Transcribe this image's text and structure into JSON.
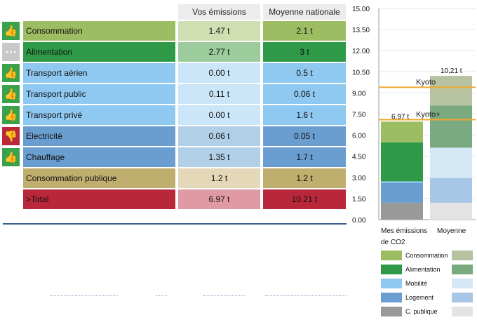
{
  "table": {
    "headers": {
      "yours": "Vos émissions",
      "national": "Moyenne nationale"
    },
    "rows": [
      {
        "icon": "thumbs-up-icon",
        "icon_glyph": "👍",
        "icon_bg": "#3aa24a",
        "label": "Consommation",
        "yours": "1.47 t",
        "national": "2.1 t",
        "lbl_bg": "#9dbd63",
        "v1_bg": "#cfdfb2",
        "v2_bg": "#9dbd63"
      },
      {
        "icon": "more-icon",
        "icon_glyph": "• • •",
        "icon_bg": "#c8c8c8",
        "label": "Alimentation",
        "yours": "2.77 t",
        "national": "3 t",
        "lbl_bg": "#2e9a48",
        "v1_bg": "#9ccc9c",
        "v2_bg": "#2e9a48"
      },
      {
        "icon": "thumbs-up-icon",
        "icon_glyph": "👍",
        "icon_bg": "#3aa24a",
        "label": "Transport aérien",
        "yours": "0.00 t",
        "national": "0.5 t",
        "lbl_bg": "#8fc8f0",
        "v1_bg": "#cbe6f8",
        "v2_bg": "#8fc8f0"
      },
      {
        "icon": "thumbs-up-icon",
        "icon_glyph": "👍",
        "icon_bg": "#3aa24a",
        "label": "Transport public",
        "yours": "0.11 t",
        "national": "0.06 t",
        "lbl_bg": "#8fc8f0",
        "v1_bg": "#cbe6f8",
        "v2_bg": "#8fc8f0"
      },
      {
        "icon": "thumbs-up-icon",
        "icon_glyph": "👍",
        "icon_bg": "#3aa24a",
        "label": "Transport privé",
        "yours": "0.00 t",
        "national": "1.6 t",
        "lbl_bg": "#8fc8f0",
        "v1_bg": "#cbe6f8",
        "v2_bg": "#8fc8f0"
      },
      {
        "icon": "thumbs-down-icon",
        "icon_glyph": "👎",
        "icon_bg": "#b8283a",
        "label": "Electricité",
        "yours": "0.06 t",
        "national": "0.05 t",
        "lbl_bg": "#6a9ed0",
        "v1_bg": "#b2cfe8",
        "v2_bg": "#6a9ed0"
      },
      {
        "icon": "thumbs-up-icon",
        "icon_glyph": "👍",
        "icon_bg": "#3aa24a",
        "label": "Chauffage",
        "yours": "1.35 t",
        "national": "1.7 t",
        "lbl_bg": "#6a9ed0",
        "v1_bg": "#b2cfe8",
        "v2_bg": "#6a9ed0"
      },
      {
        "icon": "",
        "icon_glyph": "",
        "icon_bg": "",
        "label": "Consommation publique",
        "yours": "1.2 t",
        "national": "1.2 t",
        "lbl_bg": "#bfae6e",
        "v1_bg": "#e4d8b8",
        "v2_bg": "#bfae6e"
      },
      {
        "icon": "",
        "icon_glyph": "",
        "icon_bg": "",
        "label": ">Total",
        "yours": "6.97 t",
        "national": "10.21 t",
        "lbl_bg": "#b8283a",
        "v1_bg": "#e09aa4",
        "v2_bg": "#b8283a"
      }
    ]
  },
  "chart_data": {
    "type": "bar",
    "stacked": true,
    "ylim": [
      0,
      15
    ],
    "yticks": [
      "0.00",
      "1.50",
      "3.00",
      "4.50",
      "6.00",
      "7.50",
      "9.00",
      "10.50",
      "12.00",
      "13.50",
      "15.00"
    ],
    "categories": [
      "Mes émissions de CO2",
      "Moyenne"
    ],
    "category_label_1_line1": "Mes émissions",
    "category_label_1_line2": "de CO2",
    "category_label_2": "Moyenne",
    "totals": [
      "6,97 t",
      "10,21 t"
    ],
    "series": [
      {
        "name": "C. publique",
        "values": [
          1.2,
          1.2
        ],
        "colors": [
          "#999999",
          "#e4e4e4"
        ]
      },
      {
        "name": "Logement",
        "values": [
          1.41,
          1.75
        ],
        "colors": [
          "#6a9ed0",
          "#a8c6e6"
        ]
      },
      {
        "name": "Mobilité",
        "values": [
          0.11,
          2.16
        ],
        "colors": [
          "#8fc8f0",
          "#d4e8f6"
        ]
      },
      {
        "name": "Alimentation",
        "values": [
          2.77,
          3.0
        ],
        "colors": [
          "#2e9a48",
          "#7aaa80"
        ]
      },
      {
        "name": "Consommation",
        "values": [
          1.47,
          2.1
        ],
        "colors": [
          "#9dbd63",
          "#b6c2a0"
        ]
      }
    ],
    "reference_lines": [
      {
        "name": "Kyoto",
        "value": 9.4,
        "color": "#f0a830"
      },
      {
        "name": "Kyoto+",
        "value": 7.1,
        "color": "#f0a830"
      }
    ]
  },
  "legend": [
    {
      "name": "Consommation",
      "c1": "#9dbd63",
      "c2": "#b6c2a0"
    },
    {
      "name": "Alimentation",
      "c1": "#2e9a48",
      "c2": "#7aaa80"
    },
    {
      "name": "Mobilité",
      "c1": "#8fc8f0",
      "c2": "#d4e8f6"
    },
    {
      "name": "Logement",
      "c1": "#6a9ed0",
      "c2": "#a8c6e6"
    },
    {
      "name": "C. publique",
      "c1": "#999999",
      "c2": "#e4e4e4"
    }
  ]
}
